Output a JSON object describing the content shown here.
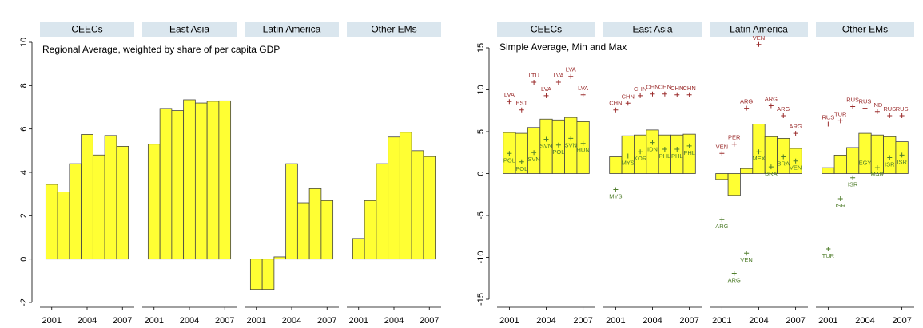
{
  "chart_data": [
    {
      "type": "bar",
      "subtitle": "Regional Average, weighted by share of per capita GDP",
      "x": [
        2001,
        2002,
        2003,
        2004,
        2005,
        2006,
        2007
      ],
      "xlim": [
        2000,
        2008
      ],
      "xticks": [
        2001,
        2004,
        2007
      ],
      "ylim": [
        -2,
        10
      ],
      "yticks": [
        -2,
        0,
        2,
        4,
        6,
        8,
        10
      ],
      "color": "#ffff33",
      "facets": [
        {
          "name": "CEECs",
          "values": [
            3.45,
            3.1,
            4.4,
            5.75,
            4.8,
            5.7,
            5.2
          ]
        },
        {
          "name": "East Asia",
          "values": [
            5.3,
            6.95,
            6.85,
            7.35,
            7.2,
            7.28,
            7.3
          ]
        },
        {
          "name": "Latin America",
          "values": [
            -1.4,
            -1.4,
            0.1,
            4.4,
            2.6,
            3.25,
            2.7
          ]
        },
        {
          "name": "Other EMs",
          "values": [
            0.95,
            2.7,
            4.4,
            5.63,
            5.85,
            5.0,
            4.73
          ]
        }
      ]
    },
    {
      "type": "bar",
      "subtitle": "Simple Average, Min and Max",
      "x": [
        2001,
        2002,
        2003,
        2004,
        2005,
        2006,
        2007
      ],
      "xlim": [
        2000,
        2008
      ],
      "xticks": [
        2001,
        2004,
        2007
      ],
      "ylim": [
        -15,
        15
      ],
      "yticks": [
        -15,
        -10,
        -5,
        0,
        5,
        10,
        15
      ],
      "color": "#ffff33",
      "max_color": "#9b2d2d",
      "min_color": "#4f7d2b",
      "facets": [
        {
          "name": "CEECs",
          "values": [
            4.9,
            4.8,
            5.5,
            6.5,
            6.4,
            6.7,
            6.2
          ],
          "max": [
            8.6,
            7.6,
            10.9,
            9.3,
            10.9,
            11.6,
            9.4
          ],
          "max_labels": [
            "LVA",
            "EST",
            "LTU",
            "LVA",
            "LVA",
            "LVA",
            "LVA"
          ],
          "min": [
            2.4,
            1.4,
            2.5,
            4.1,
            3.4,
            4.2,
            3.6
          ],
          "min_labels": [
            "POL",
            "POL",
            "SVN",
            "SVN",
            "POL",
            "SVN",
            "HUN"
          ]
        },
        {
          "name": "East Asia",
          "values": [
            2.0,
            4.5,
            4.6,
            5.2,
            4.6,
            4.6,
            4.7
          ],
          "max": [
            7.6,
            8.4,
            9.3,
            9.5,
            9.5,
            9.4,
            9.4
          ],
          "max_labels": [
            "CHN",
            "CHN",
            "CHN",
            "CHN",
            "CHN",
            "CHN",
            "CHN"
          ],
          "min": [
            -1.9,
            2.1,
            2.6,
            3.7,
            2.9,
            2.9,
            3.3
          ],
          "min_labels": [
            "MYS",
            "MYS",
            "KOR",
            "IDN",
            "PHL",
            "PHL",
            "PHL"
          ]
        },
        {
          "name": "Latin America",
          "values": [
            -0.7,
            -2.6,
            0.6,
            5.9,
            4.4,
            4.2,
            3.0
          ],
          "max": [
            2.4,
            3.5,
            7.8,
            15.4,
            8.1,
            6.9,
            4.8
          ],
          "max_labels": [
            "VEN",
            "PER",
            "ARG",
            "VEN",
            "ARG",
            "ARG",
            "ARG"
          ],
          "min": [
            -5.5,
            -11.9,
            -9.5,
            2.6,
            0.8,
            2.0,
            1.5
          ],
          "min_labels": [
            "ARG",
            "ARG",
            "VEN",
            "MEX",
            "BRA",
            "BRA",
            "VEN"
          ]
        },
        {
          "name": "Other EMs",
          "values": [
            0.7,
            2.2,
            3.1,
            4.8,
            4.6,
            4.4,
            3.8
          ],
          "max": [
            5.9,
            6.3,
            8.0,
            7.8,
            7.4,
            6.9,
            6.9
          ],
          "max_labels": [
            "RUS",
            "TUR",
            "RUS",
            "RUS",
            "IND",
            "RUS",
            "RUS"
          ],
          "min": [
            -9.0,
            -3.0,
            -0.5,
            2.1,
            0.7,
            1.9,
            2.2
          ],
          "min_labels": [
            "TUR",
            "ISR",
            "ISR",
            "EGY",
            "MAR",
            "ISR",
            "ISR"
          ]
        }
      ]
    }
  ]
}
